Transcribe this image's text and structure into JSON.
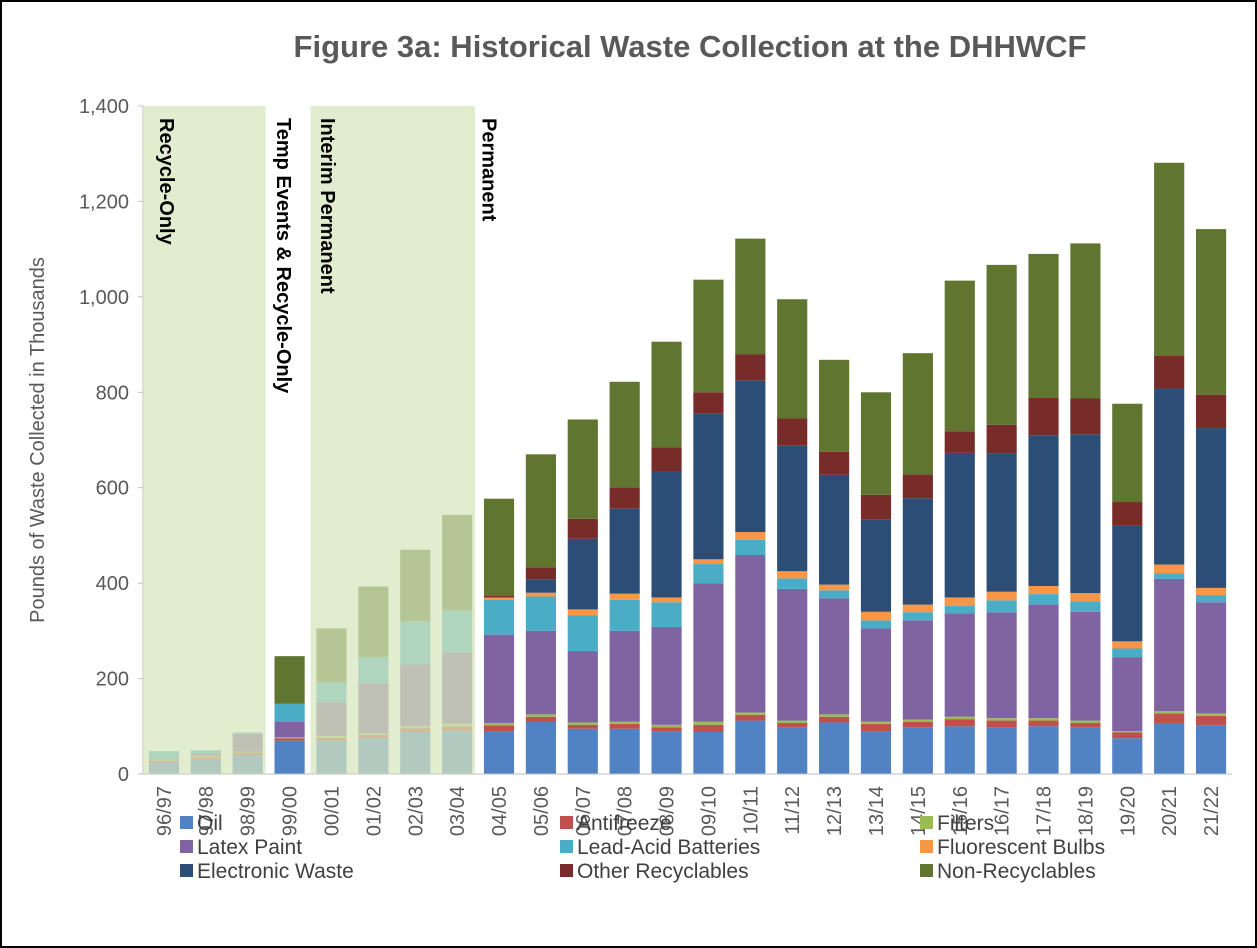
{
  "chart_data": {
    "type": "stacked_bar",
    "title": "Figure 3a:  Historical Waste Collection at the DHHWCF",
    "y_label": "Pounds of Waste Collected in Thousands",
    "annotations": [
      "Recycle-Only",
      "Temp Events & Recycle-Only",
      "Interim Permanent",
      "Permanent"
    ],
    "categories": [
      "96/97",
      "97/98",
      "98/99",
      "99/00",
      "00/01",
      "01/02",
      "02/03",
      "03/04",
      "04/05",
      "05/06",
      "06/07",
      "07/08",
      "08/09",
      "09/10",
      "10/11",
      "11/12",
      "12/13",
      "13/14",
      "14/15",
      "15/16",
      "16/17",
      "17/18",
      "18/19",
      "19/20",
      "20/21",
      "21/22"
    ],
    "ylim": [
      0,
      1400
    ],
    "yticks": [
      0,
      200,
      400,
      600,
      800,
      {
        "value": 1000,
        "label": "1,000"
      },
      {
        "value": 1200,
        "label": "1,200"
      },
      {
        "value": 1400,
        "label": "1,400"
      }
    ],
    "series": [
      {
        "name": "Oil",
        "color": "#5082c4",
        "values": [
          24,
          30,
          40,
          70,
          70,
          75,
          88,
          90,
          90,
          110,
          95,
          95,
          90,
          88,
          112,
          97,
          108,
          90,
          97,
          100,
          97,
          100,
          97,
          75,
          107,
          102
        ]
      },
      {
        "name": "Antifreeze",
        "color": "#c0504d",
        "values": [
          4,
          5,
          5,
          5,
          6,
          7,
          8,
          10,
          12,
          10,
          8,
          10,
          8,
          15,
          12,
          10,
          12,
          15,
          12,
          15,
          15,
          12,
          10,
          12,
          20,
          20
        ]
      },
      {
        "name": "Filters",
        "color": "#9bbb59",
        "values": [
          2,
          3,
          2,
          2,
          4,
          3,
          4,
          5,
          5,
          5,
          5,
          5,
          5,
          7,
          5,
          5,
          5,
          5,
          5,
          5,
          5,
          5,
          5,
          3,
          5,
          5
        ]
      },
      {
        "name": "Latex Paint",
        "color": "#8064a2",
        "values": [
          2,
          5,
          37,
          32,
          70,
          105,
          130,
          150,
          185,
          175,
          150,
          190,
          205,
          290,
          330,
          276,
          243,
          195,
          208,
          217,
          222,
          238,
          228,
          155,
          277,
          233
        ]
      },
      {
        "name": "Lead-Acid Batteries",
        "color": "#4bacc6",
        "values": [
          16,
          7,
          3,
          38,
          42,
          55,
          90,
          88,
          73,
          72,
          75,
          65,
          52,
          40,
          32,
          22,
          17,
          17,
          17,
          15,
          25,
          22,
          22,
          18,
          12,
          15
        ]
      },
      {
        "name": "Fluorescent Bulbs",
        "color": "#f79646",
        "values": [
          0,
          0,
          0,
          0,
          0,
          0,
          0,
          0,
          5,
          8,
          12,
          13,
          10,
          10,
          16,
          15,
          12,
          18,
          16,
          18,
          18,
          17,
          17,
          15,
          18,
          15
        ]
      },
      {
        "name": "Electronic Waste",
        "color": "#2c4d75",
        "values": [
          0,
          0,
          0,
          0,
          0,
          0,
          0,
          0,
          0,
          28,
          148,
          178,
          265,
          305,
          318,
          263,
          230,
          193,
          223,
          303,
          290,
          316,
          333,
          242,
          369,
          335
        ]
      },
      {
        "name": "Other Recyclables",
        "color": "#772c2a",
        "values": [
          0,
          0,
          0,
          0,
          0,
          0,
          0,
          0,
          3,
          25,
          42,
          45,
          50,
          45,
          55,
          57,
          48,
          52,
          50,
          45,
          60,
          78,
          75,
          50,
          68,
          70
        ]
      },
      {
        "name": "Non-Recyclables",
        "color": "#5f7530",
        "values": [
          0,
          0,
          0,
          100,
          113,
          148,
          150,
          200,
          204,
          237,
          208,
          221,
          221,
          236,
          242,
          250,
          193,
          215,
          254,
          316,
          335,
          302,
          325,
          206,
          405,
          347
        ]
      }
    ]
  }
}
